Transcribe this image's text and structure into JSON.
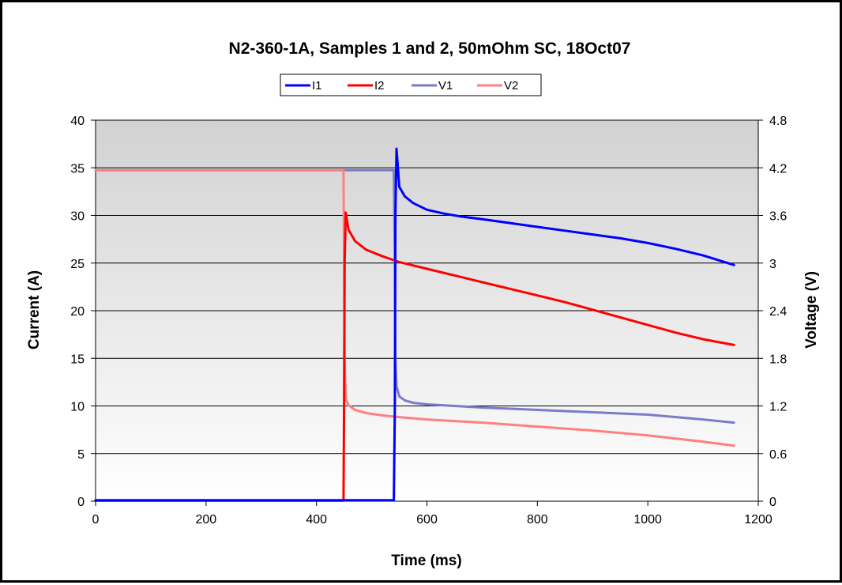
{
  "chart_data": {
    "type": "line",
    "title": "N2-360-1A, Samples 1 and 2, 50mOhm SC, 18Oct07",
    "xlabel": "Time (ms)",
    "ylabel": "Current (A)",
    "y2label": "Voltage (V)",
    "xlim": [
      0,
      1200
    ],
    "ylim": [
      0,
      40
    ],
    "y2lim": [
      0,
      4.8
    ],
    "x_ticks": [
      "0",
      "200",
      "400",
      "600",
      "800",
      "1000",
      "1200"
    ],
    "y_ticks": [
      "0",
      "5",
      "10",
      "15",
      "20",
      "25",
      "30",
      "35",
      "40"
    ],
    "y2_ticks": [
      "0",
      "0.6",
      "1.2",
      "1.8",
      "2.4",
      "3",
      "3.6",
      "4.2",
      "4.8"
    ],
    "legend_position": "top-center",
    "grid": "horizontal",
    "series": [
      {
        "name": "I1",
        "axis": "left",
        "color": "#0000FF",
        "x": [
          0,
          540,
          542,
          543,
          545,
          550,
          560,
          575,
          600,
          630,
          660,
          700,
          750,
          800,
          850,
          900,
          950,
          1000,
          1050,
          1100,
          1156
        ],
        "y": [
          0.1,
          0.1,
          10,
          30,
          37,
          33,
          32,
          31.3,
          30.6,
          30.2,
          29.9,
          29.6,
          29.2,
          28.8,
          28.4,
          28.0,
          27.6,
          27.1,
          26.5,
          25.8,
          24.8
        ]
      },
      {
        "name": "I2",
        "axis": "left",
        "color": "#FF0000",
        "x": [
          0,
          449,
          450,
          451,
          453,
          458,
          470,
          490,
          520,
          550,
          600,
          650,
          700,
          750,
          800,
          850,
          900,
          950,
          1000,
          1050,
          1100,
          1156
        ],
        "y": [
          0.05,
          0.05,
          10,
          25,
          30.3,
          28.5,
          27.3,
          26.4,
          25.7,
          25.1,
          24.4,
          23.7,
          23.0,
          22.3,
          21.6,
          20.9,
          20.1,
          19.3,
          18.5,
          17.7,
          17.0,
          16.4
        ]
      },
      {
        "name": "V1",
        "axis": "right",
        "color": "#7B7BC9",
        "x": [
          0,
          540,
          542,
          543,
          545,
          550,
          560,
          575,
          600,
          650,
          700,
          800,
          900,
          1000,
          1100,
          1156
        ],
        "y": [
          4.17,
          4.17,
          3.0,
          1.8,
          1.45,
          1.32,
          1.27,
          1.24,
          1.22,
          1.2,
          1.18,
          1.15,
          1.12,
          1.09,
          1.03,
          0.99
        ]
      },
      {
        "name": "V2",
        "axis": "right",
        "color": "#FF8080",
        "x": [
          0,
          449,
          450,
          451,
          453,
          458,
          470,
          490,
          520,
          550,
          600,
          700,
          800,
          900,
          1000,
          1100,
          1156
        ],
        "y": [
          4.17,
          4.17,
          3.0,
          1.8,
          1.29,
          1.21,
          1.15,
          1.11,
          1.08,
          1.06,
          1.03,
          0.99,
          0.94,
          0.89,
          0.83,
          0.75,
          0.7
        ]
      }
    ]
  }
}
